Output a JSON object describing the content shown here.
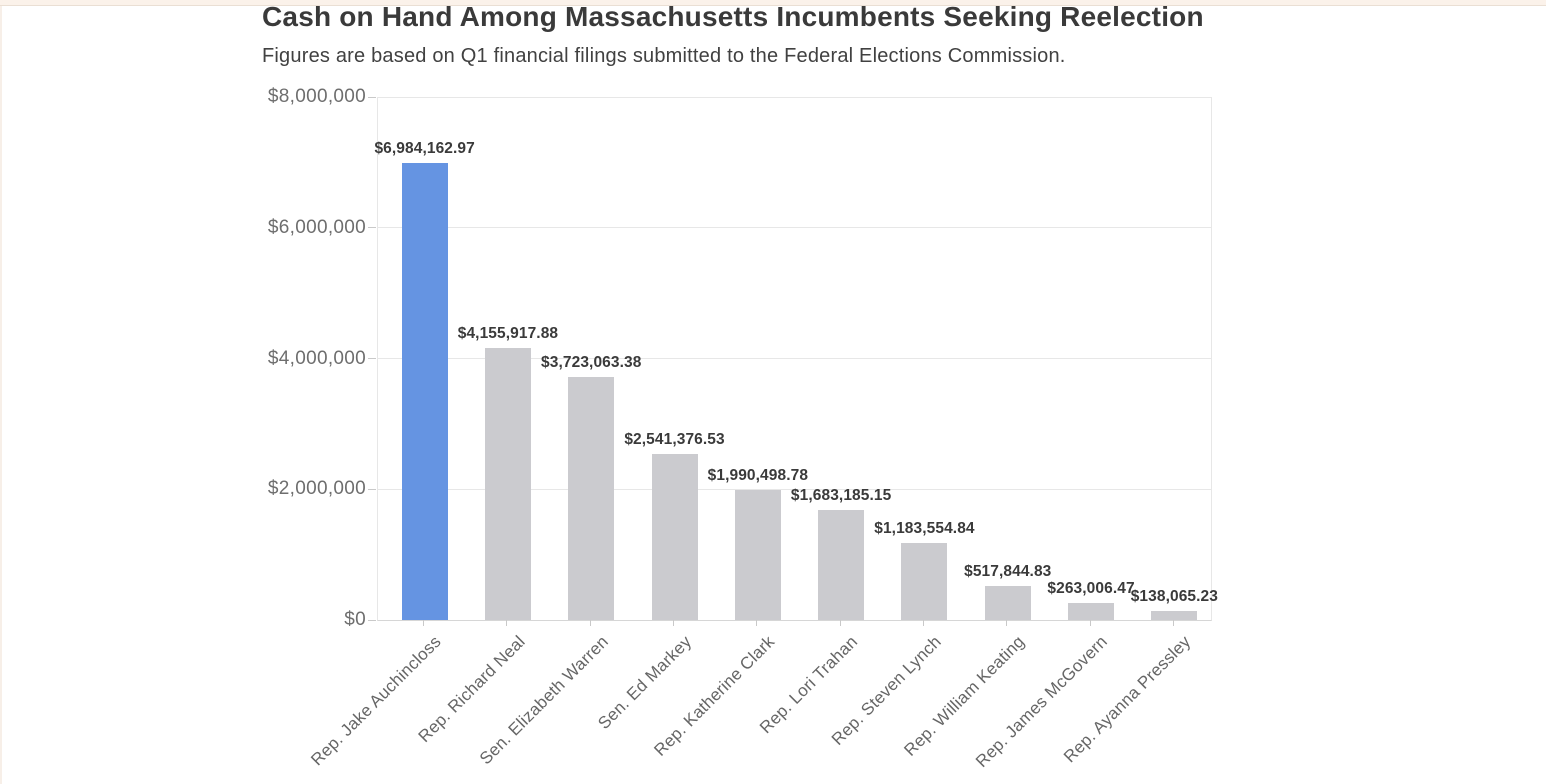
{
  "chart_data": {
    "type": "bar",
    "title": "Cash on Hand Among Massachusetts Incumbents Seeking Reelection",
    "subtitle": "Figures are based on Q1 financial filings submitted to the Federal Elections Commission.",
    "categories": [
      "Rep. Jake Auchincloss",
      "Rep. Richard Neal",
      "Sen. Elizabeth Warren",
      "Sen. Ed Markey",
      "Rep. Katherine Clark",
      "Rep. Lori Trahan",
      "Rep. Steven Lynch",
      "Rep. William Keating",
      "Rep. James McGovern",
      "Rep. Ayanna Pressley"
    ],
    "values": [
      6984162.97,
      4155917.88,
      3723063.38,
      2541376.53,
      1990498.78,
      1683185.15,
      1183554.84,
      517844.83,
      263006.47,
      138065.23
    ],
    "value_labels": [
      "$6,984,162.97",
      "$4,155,917.88",
      "$3,723,063.38",
      "$2,541,376.53",
      "$1,990,498.78",
      "$1,683,185.15",
      "$1,183,554.84",
      "$517,844.83",
      "$263,006.47",
      "$138,065.23"
    ],
    "y_ticks": [
      {
        "value": 0,
        "label": "$0"
      },
      {
        "value": 2000000,
        "label": "$2,000,000"
      },
      {
        "value": 4000000,
        "label": "$4,000,000"
      },
      {
        "value": 6000000,
        "label": "$6,000,000"
      },
      {
        "value": 8000000,
        "label": "$8,000,000"
      }
    ],
    "ylim": [
      0,
      8000000
    ],
    "xlabel": "",
    "ylabel": "",
    "grid": true,
    "legend_position": "none",
    "highlight_index": 0,
    "colors": {
      "highlight_bar": "#6594e2",
      "default_bar": "#cbcbcf",
      "grid": "#e7e7e7",
      "axis_line": "#d6d6d6",
      "tick": "#c9c9c9",
      "title": "#3a3a3a",
      "subtitle": "#414141",
      "value_label": "#3a3a3a",
      "y_tick_label": "#6e6e6e",
      "x_tick_label": "#666666",
      "top_strip": "#fbf2ea"
    }
  }
}
